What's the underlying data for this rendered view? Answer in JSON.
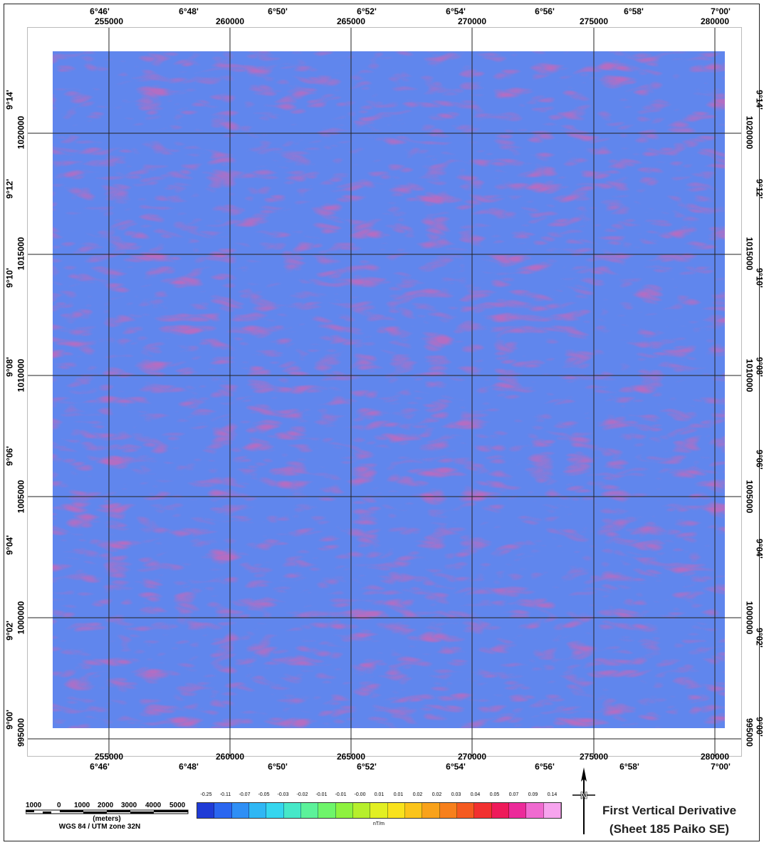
{
  "map": {
    "title_line1": "First Vertical Derivative",
    "title_line2": "(Sheet 185 Paiko SE)",
    "top_lon_labels": [
      "6°46'",
      "6°48'",
      "6°50'",
      "6°52'",
      "6°54'",
      "6°56'",
      "6°58'",
      "7°00'"
    ],
    "top_easting_labels": [
      "255000",
      "260000",
      "265000",
      "270000",
      "275000",
      "280000"
    ],
    "bottom_easting_labels": [
      "255000",
      "260000",
      "265000",
      "270000",
      "275000",
      "280000"
    ],
    "bottom_lon_labels": [
      "6°46'",
      "6°48'",
      "6°50'",
      "6°52'",
      "6°54'",
      "6°56'",
      "6°58'",
      "7°00'"
    ],
    "left_lat_labels": [
      "9°14'",
      "9°12'",
      "9°10'",
      "9°08'",
      "9°06'",
      "9°04'",
      "9°02'",
      "9°00'"
    ],
    "left_northing_labels": [
      "1020000",
      "1015000",
      "1010000",
      "1005000",
      "1000000",
      "995000"
    ],
    "right_northing_labels": [
      "1020000",
      "1015000",
      "1010000",
      "1005000",
      "1000000",
      "995000"
    ],
    "right_lat_labels": [
      "9°14'",
      "9°12'",
      "9°10'",
      "9°08'",
      "9°06'",
      "9°04'",
      "9°02'",
      "9°00'"
    ],
    "scale_bar": {
      "labels": [
        "1000",
        "0",
        "1000",
        "2000",
        "3000",
        "4000",
        "5000"
      ],
      "unit": "(meters)",
      "projection": "WGS 84 / UTM zone 32N"
    },
    "colorbar": {
      "unit": "nT/m",
      "values": [
        "-0.25",
        "-0.11",
        "-0.07",
        "-0.05",
        "-0.03",
        "-0.02",
        "-0.01",
        "-0.01",
        "-0.00",
        "0.01",
        "0.01",
        "0.02",
        "0.02",
        "0.03",
        "0.04",
        "0.05",
        "0.07",
        "0.09",
        "0.14"
      ],
      "colors": [
        "#1f3bd6",
        "#2a66f0",
        "#2f8ff5",
        "#2fb7f4",
        "#35d6ee",
        "#46e8c8",
        "#5cf29a",
        "#6ef56a",
        "#8ef23f",
        "#b6ef2c",
        "#e2ef22",
        "#f9e21c",
        "#fbc41a",
        "#f9a21a",
        "#f7801c",
        "#f55a20",
        "#f23030",
        "#ee1a5a",
        "#ec2a9a",
        "#f06ad0",
        "#f7a4ee"
      ]
    },
    "north_arrow_label": "N"
  }
}
